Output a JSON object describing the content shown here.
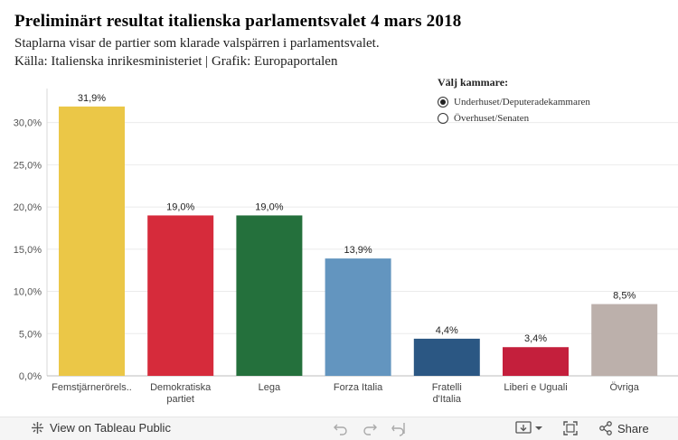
{
  "header": {
    "title": "Preliminärt resultat italienska parlamentsvalet 4 mars 2018",
    "subtitle": "Staplarna visar de partier som klarade valspärren i parlamentsvalet.",
    "source": "Källa: Italienska inrikesministeriet | Grafik: Europaportalen"
  },
  "chamber_filter": {
    "label": "Välj kammare:",
    "options": [
      "Underhuset/Deputeradekammaren",
      "Överhuset/Senaten"
    ],
    "selected": "Underhuset/Deputeradekammaren"
  },
  "chart_data": {
    "type": "bar",
    "categories": [
      "Femstjärnerörels..",
      "Demokratiska partiet",
      "Lega",
      "Forza Italia",
      "Fratelli d'Italia",
      "Liberi e Uguali",
      "Övriga"
    ],
    "values": [
      31.9,
      19.0,
      19.0,
      13.9,
      4.4,
      3.4,
      8.5
    ],
    "value_labels": [
      "31,9%",
      "19,0%",
      "19,0%",
      "13,9%",
      "4,4%",
      "3,4%",
      "8,5%"
    ],
    "colors": [
      "#ebc747",
      "#d62b3b",
      "#24703c",
      "#6395bf",
      "#2b5783",
      "#c41f3c",
      "#bcb0ab"
    ],
    "yticks": [
      0,
      5,
      10,
      15,
      20,
      25,
      30
    ],
    "ytick_labels": [
      "0,0%",
      "5,0%",
      "10,0%",
      "15,0%",
      "20,0%",
      "25,0%",
      "30,0%"
    ],
    "ylim": [
      0,
      33.6
    ],
    "xlabel": "",
    "ylabel": "",
    "grid": true
  },
  "footer": {
    "view_label": "View on Tableau Public",
    "share_label": "Share"
  }
}
